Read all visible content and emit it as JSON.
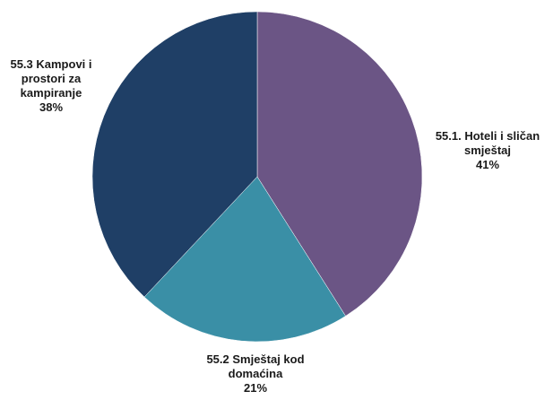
{
  "chart_data": {
    "type": "pie",
    "categories": [
      "55.1. Hoteli i sličan smještaj",
      "55.2 Smještaj kod domaćina",
      "55.3 Kampovi i prostori za kampiranje"
    ],
    "values": [
      41,
      21,
      38
    ],
    "value_labels": [
      "41%",
      "21%",
      "38%"
    ],
    "colors": [
      "#6b5585",
      "#3a8fa6",
      "#1f3f66"
    ],
    "label_lines": [
      [
        "55.1. Hoteli i sličan",
        "smještaj"
      ],
      [
        "55.2 Smještaj kod",
        "domaćina"
      ],
      [
        "55.3 Kampovi i",
        "prostori za",
        "kampiranje"
      ]
    ],
    "start_angle_deg": 0,
    "direction": "clockwise",
    "legend": "none"
  }
}
